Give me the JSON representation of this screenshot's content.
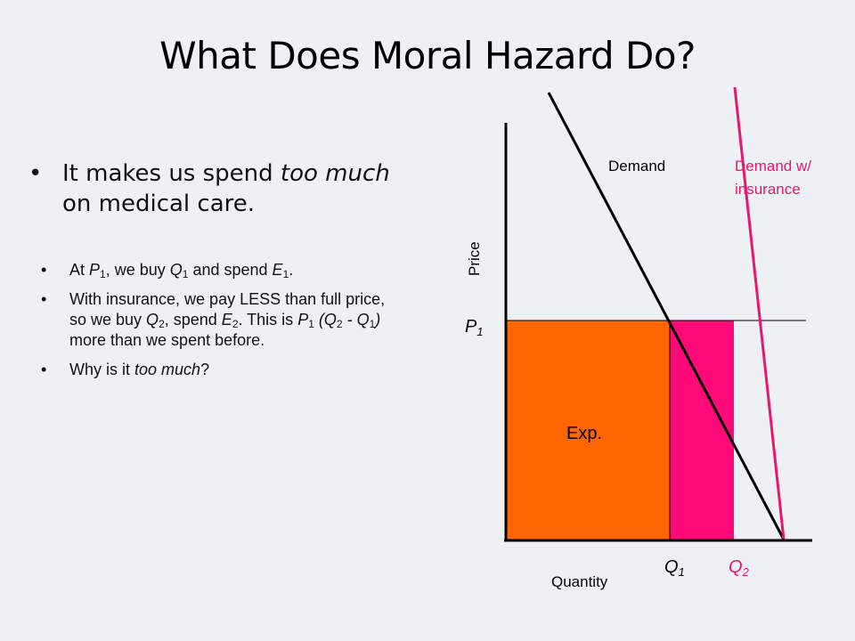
{
  "title": "What Does Moral Hazard Do?",
  "main_bullet": {
    "marker": "•",
    "part1": "It makes us spend ",
    "emph": "too much",
    "part2": " on medical care."
  },
  "sub_bullets": {
    "marker": "•",
    "b1": {
      "t1": "At ",
      "p": "P",
      "ps": "1",
      "t2": ", we buy ",
      "q": "Q",
      "qs": "1",
      "t3": " and spend ",
      "e": "E",
      "es": "1",
      "t4": "."
    },
    "b2": {
      "t1": "With insurance, we pay LESS than full price, so we buy ",
      "q2": "Q",
      "q2s": "2",
      "t2": ", spend ",
      "e2": "E",
      "e2s": "2",
      "t3": ". This is ",
      "p": "P",
      "ps": "1",
      "t4": " (",
      "qa": "Q",
      "qas": "2",
      "t5": " - ",
      "qb": "Q",
      "qbs": "1",
      "t6": ")",
      "t7": " more than we spent before."
    },
    "b3": {
      "t1": "Why is it ",
      "emph": "too much",
      "t2": "?"
    }
  },
  "diagram": {
    "y_axis_label": "Price",
    "x_axis_label": "Quantity",
    "demand_label": "Demand",
    "demand_ins_label_1": "Demand w/",
    "demand_ins_label_2": "insurance",
    "p1_label": "P",
    "p1_sub": "1",
    "q1_label": "Q",
    "q1_sub": "1",
    "q2_label": "Q",
    "q2_sub": "2",
    "area_label": "Exp.",
    "colors": {
      "expenditure_fill": "#ff6600",
      "extra_spending_fill": "#ff0a78",
      "insured_demand_line": "#e8176e",
      "demand_line": "#000000",
      "q2_text": "#e8176e"
    }
  }
}
